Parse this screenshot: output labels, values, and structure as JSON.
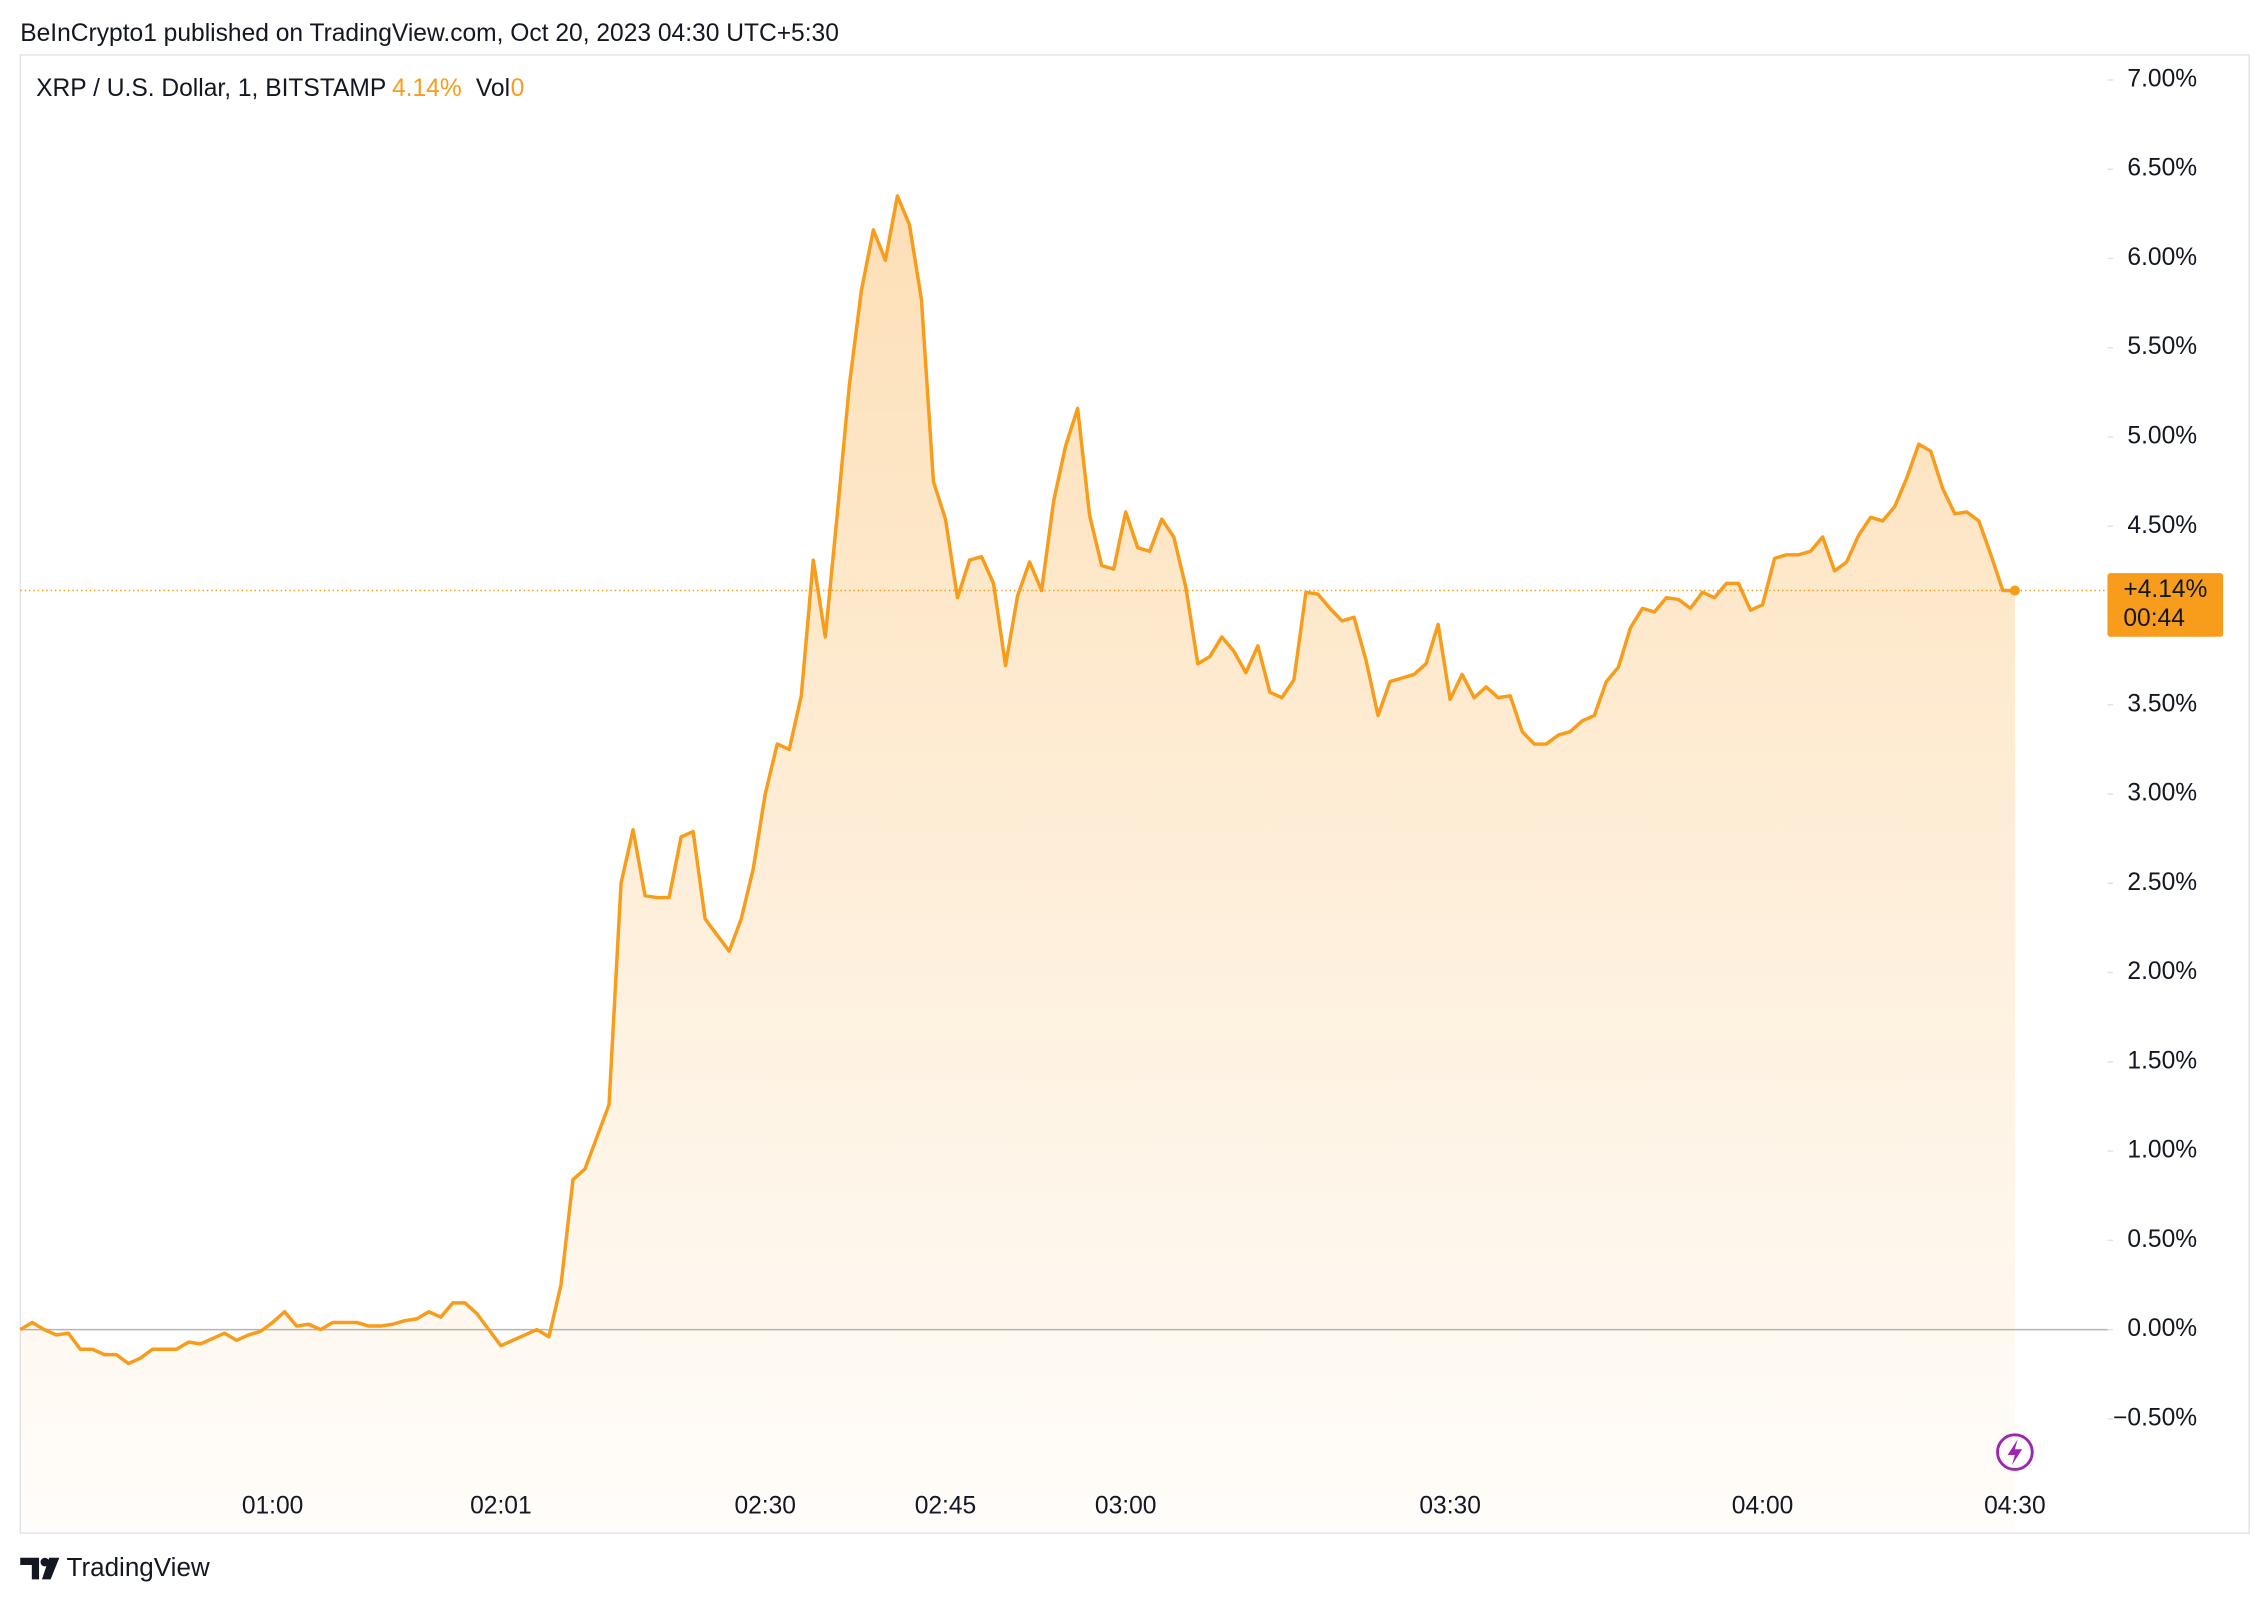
{
  "header": {
    "title": "BeInCrypto1 published on TradingView.com, Oct 20, 2023 04:30 UTC+5:30"
  },
  "chart_data": {
    "type": "area",
    "legend": {
      "symbol": "XRP / U.S. Dollar, 1, BITSTAMP",
      "change": "4.14%",
      "volume_label": "Vol",
      "volume": 0
    },
    "price_tag": {
      "change": "+4.14%",
      "countdown": "00:44"
    },
    "color": "#f89c1c",
    "categories": [
      null,
      null,
      null,
      null,
      null,
      null,
      null,
      null,
      null,
      null,
      null,
      null,
      null,
      null,
      null,
      null,
      null,
      null,
      null,
      null,
      null,
      "01:00",
      null,
      null,
      null,
      null,
      null,
      null,
      null,
      null,
      null,
      null,
      null,
      null,
      null,
      null,
      null,
      null,
      null,
      null,
      "02:01",
      null,
      null,
      null,
      null,
      null,
      null,
      null,
      null,
      null,
      null,
      null,
      null,
      null,
      null,
      null,
      null,
      null,
      null,
      null,
      null,
      null,
      "02:30",
      null,
      null,
      null,
      null,
      null,
      null,
      null,
      null,
      null,
      null,
      null,
      null,
      null,
      null,
      "02:45",
      null,
      null,
      null,
      null,
      null,
      null,
      null,
      null,
      null,
      null,
      null,
      null,
      null,
      null,
      "03:00",
      null,
      null,
      null,
      null,
      null,
      null,
      null,
      null,
      null,
      null,
      null,
      null,
      null,
      null,
      null,
      null,
      null,
      null,
      null,
      null,
      null,
      null,
      null,
      null,
      null,
      null,
      "03:30",
      null,
      null,
      null,
      null,
      null,
      null,
      null,
      null,
      null,
      null,
      null,
      null,
      null,
      null,
      null,
      null,
      null,
      null,
      null,
      null,
      null,
      null,
      null,
      null,
      null,
      "04:00",
      null,
      null,
      null,
      null,
      null,
      null,
      null,
      null,
      null,
      null,
      null,
      null,
      null,
      null,
      null,
      null,
      null,
      null,
      null,
      null,
      "04:30"
    ],
    "values": [
      0,
      0.04,
      0,
      -0.03,
      -0.02,
      -0.11,
      -0.11,
      -0.14,
      -0.14,
      -0.19,
      -0.16,
      -0.11,
      -0.11,
      -0.11,
      -0.07,
      -0.08,
      -0.05,
      -0.02,
      -0.06,
      -0.03,
      -0.01,
      0.04,
      0.1,
      0.02,
      0.03,
      0,
      0.04,
      0.04,
      0.04,
      0.02,
      0.02,
      0.03,
      0.05,
      0.06,
      0.1,
      0.07,
      0.15,
      0.15,
      0.09,
      0,
      -0.09,
      -0.06,
      -0.03,
      0,
      -0.04,
      0.25,
      0.84,
      0.9,
      1.08,
      1.26,
      2.5,
      2.8,
      2.43,
      2.42,
      2.42,
      2.76,
      2.79,
      2.3,
      2.21,
      2.12,
      2.3,
      2.58,
      3.0,
      3.28,
      3.25,
      3.55,
      4.31,
      3.88,
      4.57,
      5.29,
      5.82,
      6.16,
      5.99,
      6.35,
      6.19,
      5.77,
      4.75,
      4.54,
      4.1,
      4.31,
      4.33,
      4.18,
      3.72,
      4.11,
      4.3,
      4.14,
      4.64,
      4.95,
      5.16,
      4.56,
      4.28,
      4.26,
      4.58,
      4.38,
      4.36,
      4.54,
      4.44,
      4.16,
      3.73,
      3.77,
      3.88,
      3.8,
      3.68,
      3.83,
      3.57,
      3.54,
      3.64,
      4.13,
      4.12,
      4.04,
      3.97,
      3.99,
      3.75,
      3.44,
      3.63,
      3.65,
      3.67,
      3.73,
      3.95,
      3.53,
      3.67,
      3.54,
      3.6,
      3.54,
      3.55,
      3.35,
      3.28,
      3.28,
      3.33,
      3.35,
      3.41,
      3.44,
      3.63,
      3.71,
      3.93,
      4.04,
      4.02,
      4.1,
      4.09,
      4.04,
      4.13,
      4.1,
      4.18,
      4.18,
      4.03,
      4.06,
      4.32,
      4.34,
      4.34,
      4.36,
      4.44,
      4.25,
      4.3,
      4.45,
      4.55,
      4.53,
      4.61,
      4.77,
      4.96,
      4.92,
      4.71,
      4.57,
      4.58,
      4.53,
      4.34,
      4.14,
      4.14
    ],
    "ylim": [
      -1.14,
      7.14
    ],
    "yticks": [
      {
        "value": -0.5,
        "label": "−0.50%"
      },
      {
        "value": 0,
        "label": "0.00%"
      },
      {
        "value": 0.5,
        "label": "0.50%"
      },
      {
        "value": 1,
        "label": "1.00%"
      },
      {
        "value": 1.5,
        "label": "1.50%"
      },
      {
        "value": 2,
        "label": "2.00%"
      },
      {
        "value": 2.5,
        "label": "2.50%"
      },
      {
        "value": 3,
        "label": "3.00%"
      },
      {
        "value": 3.5,
        "label": "3.50%"
      },
      {
        "value": 4,
        "label": "4.00%"
      },
      {
        "value": 4.5,
        "label": "4.50%"
      },
      {
        "value": 5,
        "label": "5.00%"
      },
      {
        "value": 5.5,
        "label": "5.50%"
      },
      {
        "value": 6,
        "label": "6.00%"
      },
      {
        "value": 6.5,
        "label": "6.50%"
      },
      {
        "value": 7,
        "label": "7.00%"
      }
    ],
    "baseline": 0,
    "grid": false
  },
  "footer": {
    "brand": "TradingView"
  }
}
